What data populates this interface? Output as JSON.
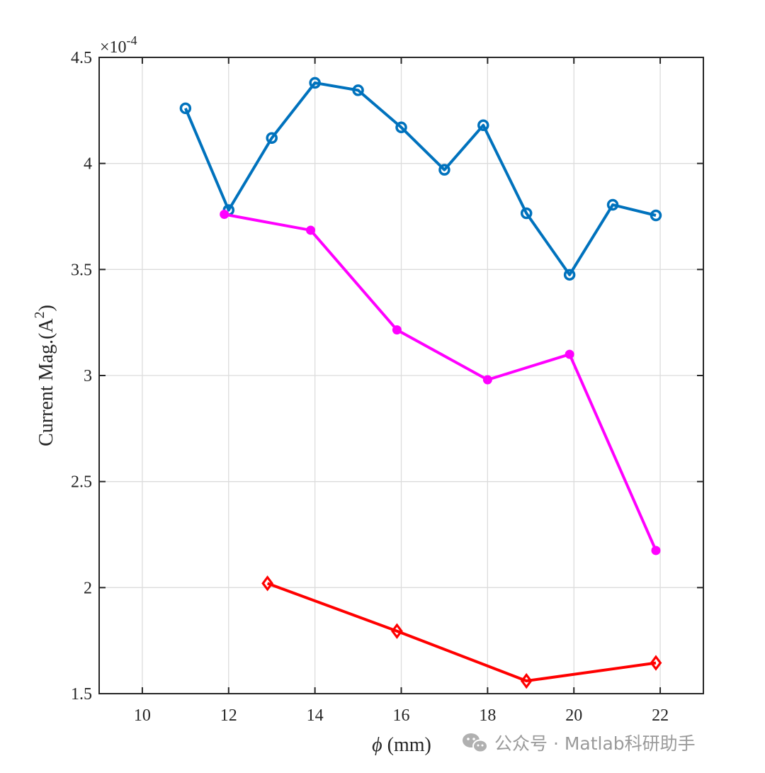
{
  "chart_data": {
    "type": "line",
    "xlabel_symbol": "ϕ",
    "xlabel_text": " (mm)",
    "ylabel_text": "Current Mag.(A",
    "ylabel_sup": "2",
    "ylabel_close": ")",
    "y_exponent_base": "×10",
    "y_exponent_power": "-4",
    "xlim": [
      9,
      23
    ],
    "ylim": [
      1.5,
      4.5
    ],
    "x_ticks": [
      10,
      12,
      14,
      16,
      18,
      20,
      22
    ],
    "y_ticks": [
      1.5,
      2,
      2.5,
      3,
      3.5,
      4,
      4.5
    ],
    "x_tick_labels": [
      "10",
      "12",
      "14",
      "16",
      "18",
      "20",
      "22"
    ],
    "y_tick_labels": [
      "1.5",
      "2",
      "2.5",
      "3",
      "3.5",
      "4",
      "4.5"
    ],
    "grid": true,
    "series": [
      {
        "color": "#0072BD",
        "marker": "circle-open",
        "x": [
          11,
          12,
          13,
          14,
          15,
          16,
          17,
          17.9,
          18.9,
          19.9,
          20.9,
          21.9
        ],
        "y": [
          4.26,
          3.78,
          4.12,
          4.38,
          4.345,
          4.17,
          3.97,
          4.18,
          3.765,
          3.475,
          3.805,
          3.755
        ]
      },
      {
        "color": "#FF00FF",
        "marker": "dot",
        "x": [
          11.9,
          13.9,
          15.9,
          18,
          19.9,
          21.9
        ],
        "y": [
          3.76,
          3.685,
          3.215,
          2.98,
          3.1,
          2.175
        ]
      },
      {
        "color": "#FF0000",
        "marker": "diamond-open",
        "x": [
          12.9,
          15.9,
          18.9,
          21.9
        ],
        "y": [
          2.02,
          1.795,
          1.56,
          1.645
        ]
      }
    ]
  },
  "watermark": {
    "text": "公众号 · Matlab科研助手",
    "icon": "wechat-icon"
  }
}
